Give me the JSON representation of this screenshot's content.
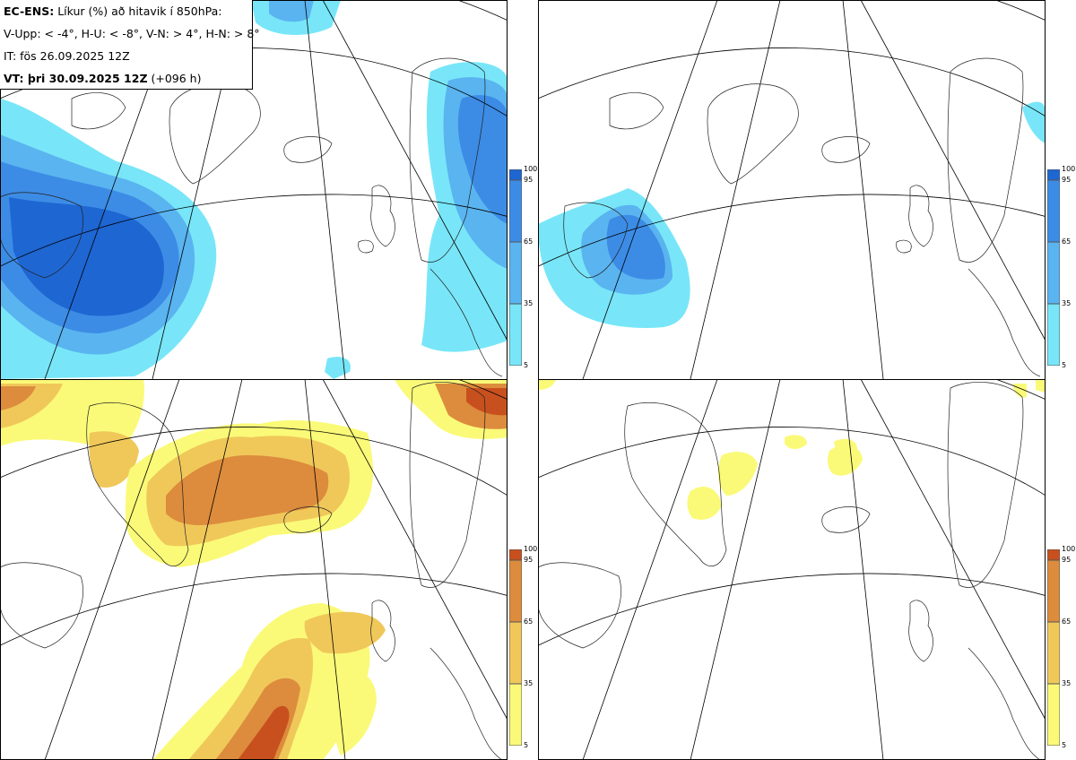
{
  "info": {
    "line1_bold": "EC-ENS:",
    "line1_rest": "Líkur (%) að hitavik í 850hPa:",
    "line2": "V-Upp: < -4°, H-U: < -8°, V-N: > 4°, H-N: > 8°",
    "line3": "IT: fös 26.09.2025 12Z",
    "line4_bold": "VT: þri 30.09.2025 12Z",
    "line4_rest": "(+096 h)"
  },
  "colorbars": {
    "cold": {
      "ticks": [
        "100",
        "95",
        "65",
        "35",
        "5"
      ],
      "colors": [
        "#1e66d2",
        "#3c8ce6",
        "#5ab4f0",
        "#78e6f8"
      ]
    },
    "warm": {
      "ticks": [
        "100",
        "95",
        "65",
        "35",
        "5"
      ],
      "colors": [
        "#c8501e",
        "#dc8c3c",
        "#f0c85a",
        "#fafa78"
      ]
    }
  },
  "panels": [
    {
      "id": "tl",
      "kind": "cold",
      "note": "V-Upp"
    },
    {
      "id": "tr",
      "kind": "cold",
      "note": "H-U"
    },
    {
      "id": "bl",
      "kind": "warm",
      "note": "V-N"
    },
    {
      "id": "br",
      "kind": "warm",
      "note": "H-N"
    }
  ]
}
